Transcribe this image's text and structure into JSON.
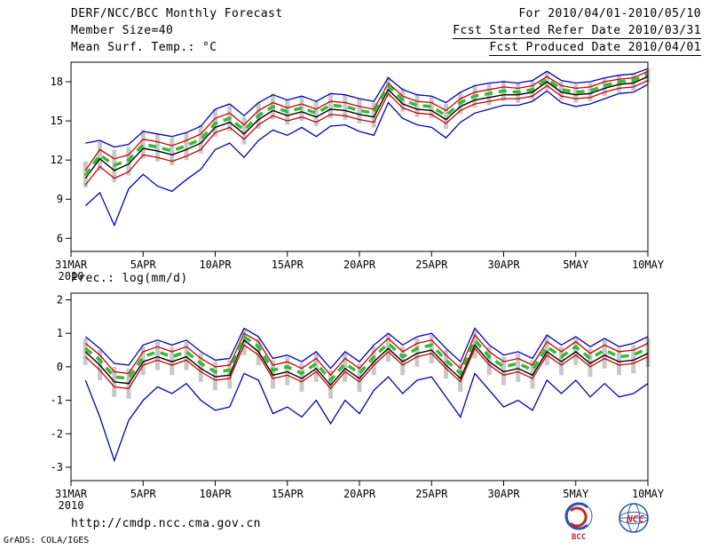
{
  "header": {
    "left": [
      "DERF/NCC/BCC Monthly Forecast",
      "Member Size=40",
      "Mean Surf. Temp.: °C"
    ],
    "right": [
      "For 2010/04/01-2010/05/10",
      "Fcst Started Refer Date 2010/03/31",
      "Fcst Produced Date 2010/04/01"
    ]
  },
  "footer": {
    "url": "http://cmdp.ncc.cma.gov.cn",
    "credit": "GrADS: COLA/IGES",
    "logos": [
      "BCC",
      "NCC"
    ]
  },
  "colors": {
    "envelope": "#0000bb",
    "quartile": "#cc0000",
    "control": "#000000",
    "mean": "#33bb33",
    "bars": "#c8c8c8"
  },
  "chart_data": [
    {
      "type": "line",
      "title": "Mean Surf. Temp.: °C",
      "xlabel": "",
      "ylabel": "",
      "grid": false,
      "legend_position": "none",
      "xlim": [
        0,
        40
      ],
      "ylim": [
        5.0,
        19.5
      ],
      "y_ticks": [
        6,
        9,
        12,
        15,
        18
      ],
      "x_ticks": [
        0,
        5,
        10,
        15,
        20,
        25,
        30,
        35,
        40
      ],
      "x_tick_labels": [
        "31MAR",
        "5APR",
        "10APR",
        "15APR",
        "20APR",
        "25APR",
        "30APR",
        "5MAY",
        "10MAY"
      ],
      "x_sub_label": "2010",
      "x": [
        1,
        2,
        3,
        4,
        5,
        6,
        7,
        8,
        9,
        10,
        11,
        12,
        13,
        14,
        15,
        16,
        17,
        18,
        19,
        20,
        21,
        22,
        23,
        24,
        25,
        26,
        27,
        28,
        29,
        30,
        31,
        32,
        33,
        34,
        35,
        36,
        37,
        38,
        39,
        40
      ],
      "bars": {
        "color": "#c8c8c8",
        "upper": [
          11.9,
          13.4,
          12.8,
          13.0,
          14.3,
          14.0,
          13.7,
          14.1,
          14.7,
          15.9,
          16.2,
          15.3,
          16.4,
          17.1,
          16.6,
          16.9,
          16.5,
          17.1,
          17.0,
          16.7,
          16.4,
          18.4,
          17.5,
          17.0,
          16.9,
          16.3,
          17.2,
          17.7,
          17.9,
          18.1,
          17.9,
          18.1,
          18.8,
          18.0,
          17.8,
          17.9,
          18.3,
          18.5,
          18.6,
          19.0
        ],
        "lower": [
          9.9,
          11.2,
          10.3,
          10.8,
          12.1,
          11.9,
          11.6,
          12.0,
          12.5,
          13.8,
          14.2,
          13.2,
          14.4,
          15.1,
          14.7,
          15.0,
          14.6,
          15.2,
          15.1,
          14.8,
          14.5,
          16.8,
          15.7,
          15.3,
          15.2,
          14.4,
          15.5,
          16.0,
          16.2,
          16.5,
          16.4,
          16.6,
          17.4,
          16.6,
          16.4,
          16.5,
          16.9,
          17.2,
          17.3,
          17.9
        ]
      },
      "series": [
        {
          "name": "ensemble-max",
          "color": "#0000bb",
          "width": 1.3,
          "dash": "",
          "values": [
            13.3,
            13.5,
            13.0,
            13.2,
            14.2,
            14.0,
            13.8,
            14.1,
            14.6,
            15.9,
            16.3,
            15.4,
            16.4,
            17.0,
            16.6,
            16.9,
            16.5,
            17.1,
            17.0,
            16.7,
            16.5,
            18.3,
            17.4,
            17.0,
            16.9,
            16.4,
            17.2,
            17.7,
            17.9,
            18.0,
            17.9,
            18.1,
            18.8,
            18.1,
            17.9,
            18.0,
            18.3,
            18.5,
            18.6,
            19.0
          ]
        },
        {
          "name": "ensemble-min",
          "color": "#0000bb",
          "width": 1.3,
          "dash": "",
          "values": [
            8.5,
            9.5,
            7.0,
            9.8,
            10.9,
            10.0,
            9.6,
            10.5,
            11.3,
            12.8,
            13.3,
            12.2,
            13.5,
            14.3,
            13.9,
            14.5,
            13.8,
            14.6,
            14.7,
            14.2,
            13.9,
            16.4,
            15.2,
            14.7,
            14.5,
            13.7,
            14.9,
            15.6,
            15.9,
            16.2,
            16.2,
            16.5,
            17.3,
            16.4,
            16.1,
            16.3,
            16.7,
            17.1,
            17.2,
            17.8
          ]
        },
        {
          "name": "upper-quartile",
          "color": "#cc0000",
          "width": 1.3,
          "dash": "",
          "values": [
            11.2,
            12.8,
            12.1,
            12.4,
            13.6,
            13.4,
            13.1,
            13.5,
            14.0,
            15.2,
            15.6,
            14.7,
            15.8,
            16.4,
            16.0,
            16.3,
            15.9,
            16.5,
            16.4,
            16.1,
            15.9,
            17.9,
            16.9,
            16.5,
            16.4,
            15.8,
            16.7,
            17.2,
            17.4,
            17.6,
            17.5,
            17.7,
            18.4,
            17.7,
            17.5,
            17.6,
            18.0,
            18.2,
            18.3,
            18.8
          ]
        },
        {
          "name": "lower-quartile",
          "color": "#cc0000",
          "width": 1.3,
          "dash": "",
          "values": [
            10.1,
            11.5,
            10.6,
            11.1,
            12.4,
            12.2,
            11.9,
            12.3,
            12.8,
            14.1,
            14.5,
            13.6,
            14.7,
            15.4,
            15.0,
            15.3,
            14.9,
            15.5,
            15.4,
            15.1,
            14.9,
            17.1,
            16.0,
            15.6,
            15.5,
            14.8,
            15.8,
            16.3,
            16.5,
            16.7,
            16.7,
            16.9,
            17.7,
            16.9,
            16.7,
            16.8,
            17.2,
            17.5,
            17.6,
            18.1
          ]
        },
        {
          "name": "control-run",
          "color": "#000000",
          "width": 1.4,
          "dash": "",
          "values": [
            10.6,
            12.1,
            11.2,
            11.7,
            12.9,
            12.7,
            12.4,
            12.8,
            13.3,
            14.5,
            14.9,
            14.0,
            15.1,
            15.8,
            15.4,
            15.7,
            15.3,
            15.9,
            15.8,
            15.5,
            15.3,
            17.4,
            16.3,
            15.9,
            15.8,
            15.1,
            16.1,
            16.6,
            16.8,
            17.0,
            17.0,
            17.2,
            18.0,
            17.2,
            17.0,
            17.1,
            17.5,
            17.8,
            17.9,
            18.4
          ]
        },
        {
          "name": "ensemble-mean",
          "color": "#33bb33",
          "width": 3.5,
          "dash": "9 7",
          "values": [
            10.8,
            12.4,
            11.6,
            12.0,
            13.2,
            13.0,
            12.7,
            13.1,
            13.6,
            14.8,
            15.2,
            14.3,
            15.4,
            16.1,
            15.7,
            16.0,
            15.6,
            16.2,
            16.1,
            15.8,
            15.6,
            17.7,
            16.6,
            16.2,
            16.1,
            15.4,
            16.4,
            16.9,
            17.1,
            17.3,
            17.2,
            17.4,
            18.2,
            17.4,
            17.2,
            17.3,
            17.7,
            18.0,
            18.1,
            18.6
          ]
        }
      ]
    },
    {
      "type": "line",
      "title": "Prec.: log(mm/d)",
      "xlabel": "",
      "ylabel": "",
      "grid": false,
      "legend_position": "none",
      "xlim": [
        0,
        40
      ],
      "ylim": [
        -3.4,
        2.2
      ],
      "y_ticks": [
        -3,
        -2,
        -1,
        0,
        1,
        2
      ],
      "x_ticks": [
        0,
        5,
        10,
        15,
        20,
        25,
        30,
        35,
        40
      ],
      "x_tick_labels": [
        "31MAR",
        "5APR",
        "10APR",
        "15APR",
        "20APR",
        "25APR",
        "30APR",
        "5MAY",
        "10MAY"
      ],
      "x_sub_label": "2010",
      "x": [
        1,
        2,
        3,
        4,
        5,
        6,
        7,
        8,
        9,
        10,
        11,
        12,
        13,
        14,
        15,
        16,
        17,
        18,
        19,
        20,
        21,
        22,
        23,
        24,
        25,
        26,
        27,
        28,
        29,
        30,
        31,
        32,
        33,
        34,
        35,
        36,
        37,
        38,
        39,
        40
      ],
      "bars": {
        "color": "#c8c8c8",
        "upper": [
          0.85,
          0.5,
          0.0,
          -0.05,
          0.6,
          0.75,
          0.6,
          0.75,
          0.4,
          0.15,
          0.2,
          1.1,
          0.85,
          0.2,
          0.3,
          0.1,
          0.4,
          -0.1,
          0.4,
          0.1,
          0.6,
          0.95,
          0.6,
          0.85,
          0.95,
          0.5,
          0.1,
          1.1,
          0.6,
          0.3,
          0.4,
          0.2,
          0.9,
          0.6,
          0.85,
          0.55,
          0.8,
          0.55,
          0.65,
          0.85
        ],
        "lower": [
          0.05,
          -0.4,
          -0.9,
          -0.95,
          -0.25,
          -0.1,
          -0.25,
          -0.1,
          -0.45,
          -0.7,
          -0.65,
          0.35,
          0.05,
          -0.65,
          -0.55,
          -0.75,
          -0.45,
          -0.95,
          -0.45,
          -0.75,
          -0.25,
          0.15,
          -0.25,
          0.0,
          0.1,
          -0.35,
          -0.75,
          0.25,
          -0.25,
          -0.55,
          -0.45,
          -0.65,
          0.05,
          -0.25,
          0.05,
          -0.3,
          -0.05,
          -0.25,
          -0.2,
          0.0
        ]
      },
      "series": [
        {
          "name": "ensemble-max",
          "color": "#0000bb",
          "width": 1.3,
          "dash": "",
          "values": [
            0.9,
            0.55,
            0.1,
            0.05,
            0.65,
            0.8,
            0.65,
            0.8,
            0.45,
            0.2,
            0.25,
            1.15,
            0.9,
            0.25,
            0.35,
            0.15,
            0.45,
            -0.05,
            0.45,
            0.15,
            0.65,
            1.0,
            0.65,
            0.9,
            1.0,
            0.55,
            0.15,
            1.15,
            0.65,
            0.35,
            0.45,
            0.25,
            0.95,
            0.65,
            0.9,
            0.6,
            0.85,
            0.6,
            0.7,
            0.9
          ]
        },
        {
          "name": "ensemble-min",
          "color": "#0000bb",
          "width": 1.3,
          "dash": "",
          "values": [
            -0.4,
            -1.5,
            -2.8,
            -1.6,
            -1.0,
            -0.6,
            -0.8,
            -0.5,
            -1.0,
            -1.3,
            -1.2,
            -0.2,
            -0.4,
            -1.4,
            -1.2,
            -1.5,
            -1.0,
            -1.7,
            -1.0,
            -1.4,
            -0.7,
            -0.3,
            -0.8,
            -0.4,
            -0.3,
            -0.9,
            -1.5,
            -0.2,
            -0.7,
            -1.2,
            -1.0,
            -1.3,
            -0.4,
            -0.8,
            -0.4,
            -0.9,
            -0.5,
            -0.9,
            -0.8,
            -0.5
          ]
        },
        {
          "name": "upper-quartile",
          "color": "#cc0000",
          "width": 1.3,
          "dash": "",
          "values": [
            0.7,
            0.35,
            -0.15,
            -0.2,
            0.45,
            0.6,
            0.45,
            0.6,
            0.25,
            0.0,
            0.05,
            1.0,
            0.75,
            0.05,
            0.15,
            -0.05,
            0.25,
            -0.25,
            0.25,
            -0.05,
            0.45,
            0.85,
            0.45,
            0.7,
            0.8,
            0.35,
            -0.05,
            0.95,
            0.45,
            0.15,
            0.25,
            0.05,
            0.75,
            0.45,
            0.75,
            0.4,
            0.65,
            0.45,
            0.5,
            0.7
          ]
        },
        {
          "name": "lower-quartile",
          "color": "#cc0000",
          "width": 1.3,
          "dash": "",
          "values": [
            0.3,
            -0.1,
            -0.6,
            -0.65,
            0.05,
            0.2,
            0.05,
            0.2,
            -0.15,
            -0.4,
            -0.35,
            0.65,
            0.35,
            -0.35,
            -0.25,
            -0.45,
            -0.15,
            -0.65,
            -0.15,
            -0.45,
            0.05,
            0.45,
            0.05,
            0.3,
            0.4,
            -0.05,
            -0.45,
            0.55,
            0.05,
            -0.25,
            -0.15,
            -0.35,
            0.35,
            0.05,
            0.35,
            0.0,
            0.25,
            0.05,
            0.1,
            0.3
          ]
        },
        {
          "name": "control-run",
          "color": "#000000",
          "width": 1.4,
          "dash": "",
          "values": [
            0.45,
            0.05,
            -0.45,
            -0.5,
            0.15,
            0.3,
            0.15,
            0.3,
            -0.05,
            -0.3,
            -0.25,
            0.8,
            0.45,
            -0.25,
            -0.15,
            -0.35,
            -0.05,
            -0.55,
            -0.05,
            -0.35,
            0.15,
            0.55,
            0.15,
            0.4,
            0.5,
            0.05,
            -0.35,
            0.65,
            0.15,
            -0.15,
            -0.05,
            -0.25,
            0.45,
            0.15,
            0.45,
            0.1,
            0.35,
            0.15,
            0.2,
            0.4
          ]
        },
        {
          "name": "ensemble-mean",
          "color": "#33bb33",
          "width": 3.5,
          "dash": "9 7",
          "values": [
            0.55,
            0.2,
            -0.3,
            -0.35,
            0.3,
            0.45,
            0.3,
            0.45,
            0.1,
            -0.15,
            -0.1,
            0.9,
            0.6,
            -0.1,
            0.0,
            -0.2,
            0.1,
            -0.4,
            0.1,
            -0.2,
            0.3,
            0.7,
            0.3,
            0.55,
            0.65,
            0.2,
            -0.2,
            0.8,
            0.3,
            0.0,
            0.1,
            -0.1,
            0.6,
            0.3,
            0.6,
            0.25,
            0.5,
            0.3,
            0.35,
            0.55
          ]
        }
      ]
    }
  ]
}
